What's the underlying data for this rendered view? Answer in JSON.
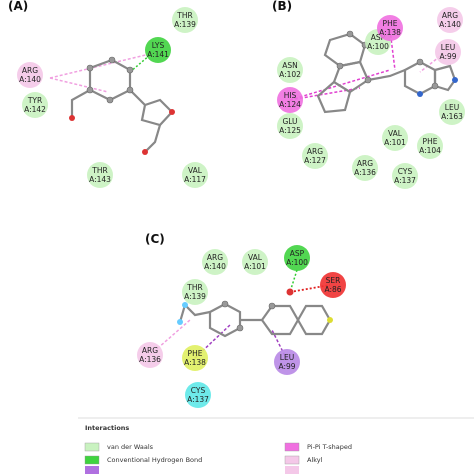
{
  "panels": [
    {
      "label": "(A)",
      "residues": [
        {
          "name": "THR",
          "chain": "A:139"
        },
        {
          "name": "LYS",
          "chain": "A:141"
        },
        {
          "name": "ARG",
          "chain": "A:140"
        },
        {
          "name": "TYR",
          "chain": "A:142"
        },
        {
          "name": "THR",
          "chain": "A:143"
        },
        {
          "name": "VAL",
          "chain": "A:117"
        }
      ]
    },
    {
      "label": "(B)",
      "residues": [
        {
          "name": "ASP",
          "chain": "A:100"
        },
        {
          "name": "PHE",
          "chain": "A:138"
        },
        {
          "name": "ARG",
          "chain": "A:140"
        },
        {
          "name": "LEU",
          "chain": "A:99"
        },
        {
          "name": "ASN",
          "chain": "A:102"
        },
        {
          "name": "HIS",
          "chain": "A:124"
        },
        {
          "name": "GLU",
          "chain": "A:125"
        },
        {
          "name": "LEU",
          "chain": "A:163"
        },
        {
          "name": "VAL",
          "chain": "A:101"
        },
        {
          "name": "PHE",
          "chain": "A:104"
        },
        {
          "name": "ARG",
          "chain": "A:127"
        },
        {
          "name": "ARG",
          "chain": "A:136"
        },
        {
          "name": "CYS",
          "chain": "A:137"
        }
      ]
    },
    {
      "label": "(C)",
      "residues": [
        {
          "name": "ARG",
          "chain": "A:140"
        },
        {
          "name": "VAL",
          "chain": "A:101"
        },
        {
          "name": "ASP",
          "chain": "A:100"
        },
        {
          "name": "THR",
          "chain": "A:139"
        },
        {
          "name": "SER",
          "chain": "A:86"
        },
        {
          "name": "ARG",
          "chain": "A:136"
        },
        {
          "name": "PHE",
          "chain": "A:138"
        },
        {
          "name": "LEU",
          "chain": "A:99"
        },
        {
          "name": "CYS",
          "chain": "A:137"
        }
      ]
    }
  ],
  "legend": {
    "title": "Interactions",
    "items": [
      "van der Waals",
      "Conventional Hydrogen Bond",
      "Pi-Pi T-shaped",
      "Alkyl"
    ]
  }
}
